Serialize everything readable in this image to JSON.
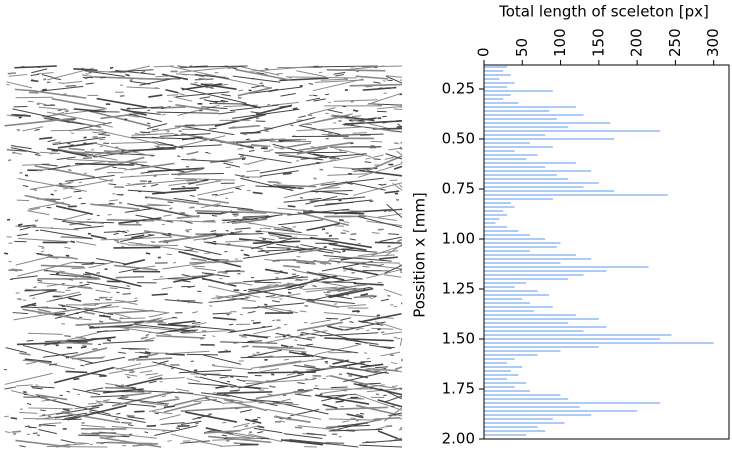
{
  "chart_data": {
    "type": "hbar",
    "value_axis_label": "Total length of sceleton [px]",
    "position_axis_label": "Possition x [mm]",
    "color": "#6fa3ef",
    "positions": [
      0.14,
      0.16,
      0.18,
      0.2,
      0.22,
      0.24,
      0.26,
      0.28,
      0.3,
      0.32,
      0.34,
      0.36,
      0.38,
      0.4,
      0.42,
      0.44,
      0.46,
      0.48,
      0.5,
      0.52,
      0.54,
      0.56,
      0.58,
      0.6,
      0.62,
      0.64,
      0.66,
      0.68,
      0.7,
      0.72,
      0.74,
      0.76,
      0.78,
      0.8,
      0.82,
      0.84,
      0.86,
      0.88,
      0.9,
      0.92,
      0.94,
      0.96,
      0.98,
      1.0,
      1.02,
      1.04,
      1.06,
      1.08,
      1.1,
      1.12,
      1.14,
      1.16,
      1.18,
      1.2,
      1.22,
      1.24,
      1.26,
      1.28,
      1.3,
      1.32,
      1.34,
      1.36,
      1.38,
      1.4,
      1.42,
      1.44,
      1.46,
      1.48,
      1.5,
      1.52,
      1.54,
      1.56,
      1.58,
      1.6,
      1.62,
      1.64,
      1.66,
      1.68,
      1.7,
      1.72,
      1.74,
      1.76,
      1.78,
      1.8,
      1.82,
      1.84,
      1.86,
      1.88,
      1.9,
      1.92,
      1.94,
      1.96,
      1.98
    ],
    "values": [
      30,
      25,
      35,
      20,
      40,
      30,
      90,
      35,
      25,
      45,
      120,
      85,
      130,
      95,
      165,
      110,
      230,
      80,
      170,
      60,
      90,
      40,
      70,
      55,
      120,
      80,
      140,
      95,
      110,
      150,
      130,
      170,
      240,
      90,
      35,
      40,
      25,
      30,
      20,
      15,
      30,
      45,
      60,
      80,
      100,
      95,
      60,
      120,
      140,
      100,
      215,
      160,
      130,
      110,
      55,
      40,
      70,
      85,
      50,
      60,
      90,
      65,
      120,
      150,
      110,
      160,
      130,
      245,
      230,
      300,
      150,
      100,
      70,
      40,
      30,
      50,
      35,
      45,
      30,
      55,
      40,
      60,
      100,
      110,
      230,
      125,
      200,
      140,
      90,
      105,
      70,
      80,
      55
    ],
    "xlim": [
      0,
      320
    ],
    "xticks": [
      0,
      50,
      100,
      150,
      200,
      250,
      300
    ],
    "ylim": [
      0.13,
      2.0
    ],
    "y_inverted": true,
    "yticks": [
      0.25,
      {
        "value": 0.5,
        "label": "0.50"
      },
      {
        "value": 0.75,
        "label": "0.75"
      },
      {
        "value": 1,
        "label": "1.00"
      },
      1.25,
      {
        "value": 1.5,
        "label": "1.50"
      },
      1.75,
      {
        "value": 2,
        "label": "2.00"
      }
    ]
  }
}
